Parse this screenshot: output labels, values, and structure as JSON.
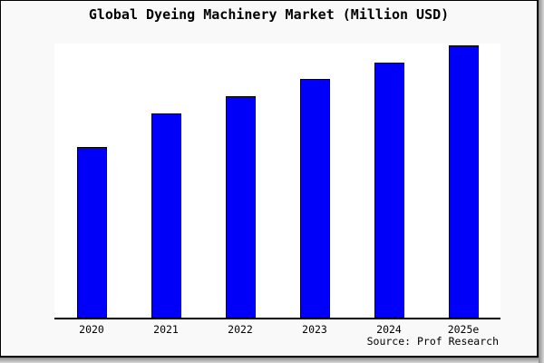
{
  "window": {
    "background": "#f9f9f9",
    "border_color": "#000000",
    "shadow_color": "#8c8c8c"
  },
  "source": "Source: Prof Research",
  "colors": {
    "figure_bg": "#f9f9f9",
    "plot_bg": "#ffffff",
    "bar_fill": "#0000fa",
    "bar_border": "#000000",
    "axis": "#000000",
    "text": "#000000"
  },
  "chart_data": {
    "type": "bar",
    "title": "Global Dyeing Machinery Market (Million USD)",
    "categories": [
      "2020",
      "2021",
      "2022",
      "2023",
      "2024",
      "2025e"
    ],
    "values": [
      62.3,
      74.5,
      80.8,
      87.1,
      93.0,
      99.3
    ],
    "value_note": "no y-axis tick labels shown in chart; values estimated as percent of plot height, baseline 0",
    "xlabel": "",
    "ylabel": "",
    "ylim": [
      0,
      100
    ],
    "grid": false,
    "legend": false,
    "y_axis_visible": false,
    "bar_color": "#0000fa",
    "annotations": [
      "Source: Prof Research"
    ]
  }
}
